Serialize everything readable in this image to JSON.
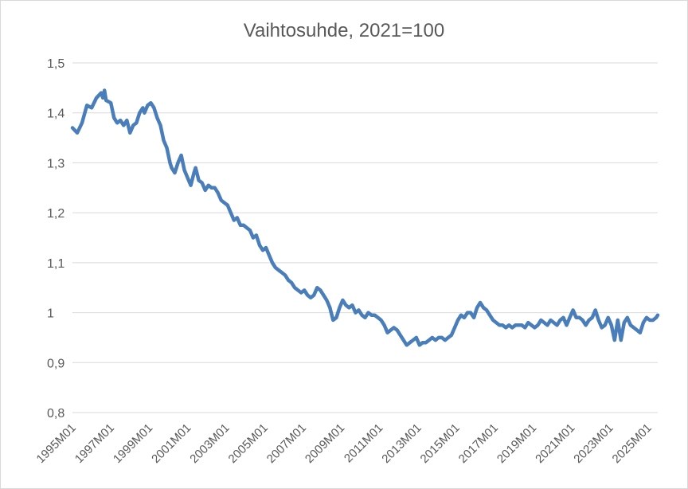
{
  "chart_data": {
    "type": "line",
    "title": "Vaihtosuhde, 2021=100",
    "xlabel": "",
    "ylabel": "",
    "ylim": [
      0.8,
      1.5
    ],
    "yticks": [
      0.8,
      0.9,
      1.0,
      1.1,
      1.2,
      1.3,
      1.4,
      1.5
    ],
    "ytick_labels": [
      "0,8",
      "0,9",
      "1",
      "1,1",
      "1,2",
      "1,3",
      "1,4",
      "1,5"
    ],
    "xtick_labels": [
      "1995M01",
      "1997M01",
      "1999M01",
      "2001M01",
      "2003M01",
      "2005M01",
      "2007M01",
      "2009M01",
      "2011M01",
      "2013M01",
      "2015M01",
      "2017M01",
      "2019M01",
      "2021M01",
      "2023M01",
      "2025M01"
    ],
    "xrange": [
      "1995M01",
      "2025M07"
    ],
    "grid": true,
    "legend": "none",
    "color": "#4a7ebb",
    "series": [
      {
        "values": [
          [
            "1995M01",
            1.37
          ],
          [
            "1995M04",
            1.36
          ],
          [
            "1995M07",
            1.38
          ],
          [
            "1995M10",
            1.415
          ],
          [
            "1996M01",
            1.41
          ],
          [
            "1996M04",
            1.43
          ],
          [
            "1996M07",
            1.44
          ],
          [
            "1996M08",
            1.43
          ],
          [
            "1996M09",
            1.445
          ],
          [
            "1996M10",
            1.425
          ],
          [
            "1997M01",
            1.42
          ],
          [
            "1997M03",
            1.39
          ],
          [
            "1997M05",
            1.38
          ],
          [
            "1997M07",
            1.385
          ],
          [
            "1997M09",
            1.375
          ],
          [
            "1997M11",
            1.385
          ],
          [
            "1998M01",
            1.36
          ],
          [
            "1998M03",
            1.375
          ],
          [
            "1998M05",
            1.38
          ],
          [
            "1998M07",
            1.4
          ],
          [
            "1998M09",
            1.41
          ],
          [
            "1998M10",
            1.4
          ],
          [
            "1998M12",
            1.415
          ],
          [
            "1999M02",
            1.42
          ],
          [
            "1999M04",
            1.41
          ],
          [
            "1999M06",
            1.39
          ],
          [
            "1999M08",
            1.375
          ],
          [
            "1999M10",
            1.345
          ],
          [
            "1999M12",
            1.33
          ],
          [
            "2000M02",
            1.3
          ],
          [
            "2000M03",
            1.29
          ],
          [
            "2000M05",
            1.28
          ],
          [
            "2000M07",
            1.3
          ],
          [
            "2000M09",
            1.315
          ],
          [
            "2000M11",
            1.285
          ],
          [
            "2001M01",
            1.27
          ],
          [
            "2001M03",
            1.255
          ],
          [
            "2001M05",
            1.28
          ],
          [
            "2001M06",
            1.29
          ],
          [
            "2001M08",
            1.265
          ],
          [
            "2001M10",
            1.26
          ],
          [
            "2001M12",
            1.245
          ],
          [
            "2002M02",
            1.255
          ],
          [
            "2002M04",
            1.25
          ],
          [
            "2002M06",
            1.25
          ],
          [
            "2002M08",
            1.24
          ],
          [
            "2002M10",
            1.225
          ],
          [
            "2002M12",
            1.22
          ],
          [
            "2003M02",
            1.215
          ],
          [
            "2003M04",
            1.2
          ],
          [
            "2003M06",
            1.185
          ],
          [
            "2003M08",
            1.19
          ],
          [
            "2003M10",
            1.175
          ],
          [
            "2003M12",
            1.175
          ],
          [
            "2004M02",
            1.17
          ],
          [
            "2004M04",
            1.165
          ],
          [
            "2004M06",
            1.15
          ],
          [
            "2004M08",
            1.155
          ],
          [
            "2004M10",
            1.135
          ],
          [
            "2004M12",
            1.125
          ],
          [
            "2005M02",
            1.13
          ],
          [
            "2005M04",
            1.115
          ],
          [
            "2005M06",
            1.1
          ],
          [
            "2005M08",
            1.09
          ],
          [
            "2005M10",
            1.085
          ],
          [
            "2005M12",
            1.08
          ],
          [
            "2006M02",
            1.075
          ],
          [
            "2006M04",
            1.065
          ],
          [
            "2006M06",
            1.06
          ],
          [
            "2006M08",
            1.05
          ],
          [
            "2006M10",
            1.045
          ],
          [
            "2006M12",
            1.04
          ],
          [
            "2007M02",
            1.045
          ],
          [
            "2007M04",
            1.035
          ],
          [
            "2007M06",
            1.03
          ],
          [
            "2007M08",
            1.035
          ],
          [
            "2007M10",
            1.05
          ],
          [
            "2007M12",
            1.045
          ],
          [
            "2008M02",
            1.035
          ],
          [
            "2008M04",
            1.025
          ],
          [
            "2008M06",
            1.01
          ],
          [
            "2008M08",
            0.985
          ],
          [
            "2008M10",
            0.99
          ],
          [
            "2008M12",
            1.01
          ],
          [
            "2009M02",
            1.025
          ],
          [
            "2009M04",
            1.015
          ],
          [
            "2009M06",
            1.01
          ],
          [
            "2009M08",
            1.015
          ],
          [
            "2009M10",
            1.0
          ],
          [
            "2009M12",
            1.005
          ],
          [
            "2010M02",
            0.995
          ],
          [
            "2010M04",
            0.99
          ],
          [
            "2010M06",
            1.0
          ],
          [
            "2010M08",
            0.995
          ],
          [
            "2010M10",
            0.995
          ],
          [
            "2010M12",
            0.99
          ],
          [
            "2011M02",
            0.985
          ],
          [
            "2011M04",
            0.975
          ],
          [
            "2011M06",
            0.96
          ],
          [
            "2011M08",
            0.965
          ],
          [
            "2011M10",
            0.97
          ],
          [
            "2011M12",
            0.965
          ],
          [
            "2012M02",
            0.955
          ],
          [
            "2012M04",
            0.945
          ],
          [
            "2012M06",
            0.935
          ],
          [
            "2012M08",
            0.94
          ],
          [
            "2012M10",
            0.945
          ],
          [
            "2012M12",
            0.95
          ],
          [
            "2013M02",
            0.935
          ],
          [
            "2013M04",
            0.94
          ],
          [
            "2013M06",
            0.94
          ],
          [
            "2013M08",
            0.945
          ],
          [
            "2013M10",
            0.95
          ],
          [
            "2013M12",
            0.945
          ],
          [
            "2014M02",
            0.95
          ],
          [
            "2014M04",
            0.95
          ],
          [
            "2014M06",
            0.945
          ],
          [
            "2014M08",
            0.95
          ],
          [
            "2014M10",
            0.955
          ],
          [
            "2014M12",
            0.97
          ],
          [
            "2015M02",
            0.985
          ],
          [
            "2015M04",
            0.995
          ],
          [
            "2015M06",
            0.99
          ],
          [
            "2015M08",
            1.0
          ],
          [
            "2015M10",
            1.0
          ],
          [
            "2015M12",
            0.99
          ],
          [
            "2016M02",
            1.01
          ],
          [
            "2016M04",
            1.02
          ],
          [
            "2016M06",
            1.01
          ],
          [
            "2016M08",
            1.005
          ],
          [
            "2016M10",
            0.995
          ],
          [
            "2016M12",
            0.985
          ],
          [
            "2017M02",
            0.98
          ],
          [
            "2017M04",
            0.975
          ],
          [
            "2017M06",
            0.975
          ],
          [
            "2017M08",
            0.97
          ],
          [
            "2017M10",
            0.975
          ],
          [
            "2017M12",
            0.97
          ],
          [
            "2018M02",
            0.975
          ],
          [
            "2018M04",
            0.975
          ],
          [
            "2018M06",
            0.975
          ],
          [
            "2018M08",
            0.97
          ],
          [
            "2018M10",
            0.98
          ],
          [
            "2018M12",
            0.975
          ],
          [
            "2019M02",
            0.97
          ],
          [
            "2019M04",
            0.975
          ],
          [
            "2019M06",
            0.985
          ],
          [
            "2019M08",
            0.98
          ],
          [
            "2019M10",
            0.975
          ],
          [
            "2019M12",
            0.985
          ],
          [
            "2020M02",
            0.98
          ],
          [
            "2020M04",
            0.975
          ],
          [
            "2020M06",
            0.985
          ],
          [
            "2020M08",
            0.99
          ],
          [
            "2020M10",
            0.975
          ],
          [
            "2020M12",
            0.99
          ],
          [
            "2021M02",
            1.005
          ],
          [
            "2021M04",
            0.99
          ],
          [
            "2021M06",
            0.99
          ],
          [
            "2021M08",
            0.985
          ],
          [
            "2021M10",
            0.975
          ],
          [
            "2021M12",
            0.985
          ],
          [
            "2022M02",
            0.99
          ],
          [
            "2022M04",
            1.005
          ],
          [
            "2022M06",
            0.985
          ],
          [
            "2022M08",
            0.97
          ],
          [
            "2022M10",
            0.975
          ],
          [
            "2022M12",
            0.99
          ],
          [
            "2023M02",
            0.975
          ],
          [
            "2023M04",
            0.945
          ],
          [
            "2023M06",
            0.985
          ],
          [
            "2023M08",
            0.945
          ],
          [
            "2023M10",
            0.98
          ],
          [
            "2023M12",
            0.99
          ],
          [
            "2024M02",
            0.975
          ],
          [
            "2024M04",
            0.97
          ],
          [
            "2024M06",
            0.965
          ],
          [
            "2024M08",
            0.96
          ],
          [
            "2024M10",
            0.98
          ],
          [
            "2024M12",
            0.99
          ],
          [
            "2025M02",
            0.985
          ],
          [
            "2025M04",
            0.985
          ],
          [
            "2025M06",
            0.99
          ],
          [
            "2025M07",
            0.995
          ]
        ]
      }
    ]
  }
}
